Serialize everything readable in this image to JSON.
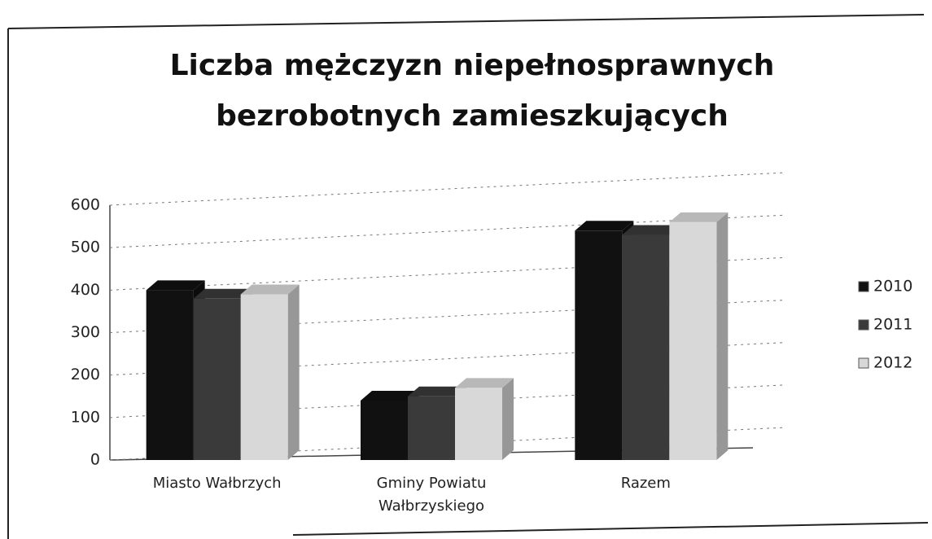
{
  "chart_data": {
    "type": "bar3d",
    "title": "Liczba mężczyzn niepełnosprawnych bezrobotnych zamieszkujących",
    "categories": [
      "Miasto Wałbrzych",
      "Gminy Powiatu Wałbrzyskiego",
      "Razem"
    ],
    "series": [
      {
        "name": "2010",
        "color": "#111111",
        "values": [
          400,
          140,
          540
        ]
      },
      {
        "name": "2011",
        "color": "#3a3a3a",
        "values": [
          380,
          150,
          530
        ]
      },
      {
        "name": "2012",
        "color": "#d8d8d8",
        "values": [
          390,
          170,
          560
        ]
      }
    ],
    "ylim": [
      0,
      600
    ],
    "yticks": [
      0,
      100,
      200,
      300,
      400,
      500,
      600
    ],
    "grid": true,
    "legend": "right"
  }
}
